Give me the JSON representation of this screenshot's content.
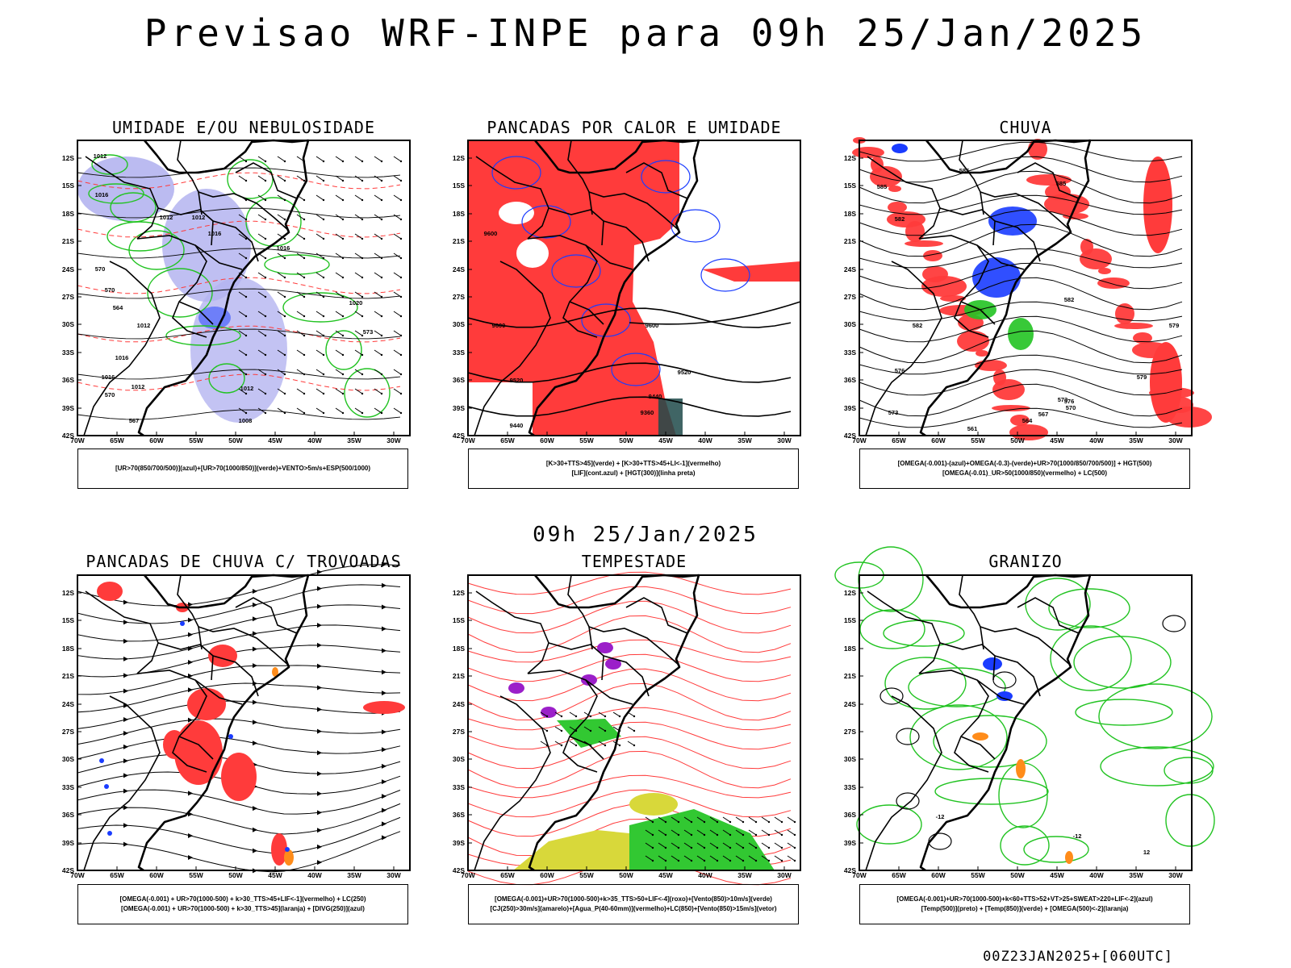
{
  "title": "Previsao WRF-INPE  para 09h 25/Jan/2025",
  "mid_time": "09h 25/Jan/2025",
  "footer": "00Z23JAN2025+[060UTC]",
  "lat_labels": [
    "12S",
    "15S",
    "18S",
    "21S",
    "24S",
    "27S",
    "30S",
    "33S",
    "36S",
    "39S",
    "42S"
  ],
  "lon_labels": [
    "70W",
    "65W",
    "60W",
    "55W",
    "50W",
    "45W",
    "40W",
    "35W",
    "30W"
  ],
  "colors": {
    "red": "#ff3b3b",
    "green": "#22c322",
    "blue": "#1a3cff",
    "lavender": "#b4b4f0",
    "yellow": "#d8d83a",
    "purple": "#9b1fc9",
    "orange": "#ff8c1a",
    "black": "#000000"
  },
  "panels": [
    {
      "title": "UMIDADE E/OU NEBULOSIDADE",
      "legend": [
        "[UR>70(850/700/500)](azul)+[UR>70(1000/850)](verde)+VENTO>5m/s+ESP(500/1000)"
      ],
      "labels": [
        "1012",
        "1016",
        "1012",
        "1012",
        "1016",
        "1016",
        "1012",
        "1020",
        "1012",
        "1016",
        "1016",
        "1012",
        "1008",
        "570",
        "570",
        "564",
        "573",
        "570",
        "567"
      ]
    },
    {
      "title": "PANCADAS POR CALOR E UMIDADE",
      "legend": [
        "[K>30+TTS>45](verde) + [K>30+TTS>45+LI<-1](vermelho)",
        "[LIF](cont.azul) + [HGT(300)](linha preta)"
      ],
      "labels": [
        "9600",
        "9600",
        "9600",
        "9520",
        "9520",
        "9440",
        "9440",
        "9360"
      ]
    },
    {
      "title": "CHUVA",
      "legend": [
        "[OMEGA(-0.001)-(azul)+OMEGA(-0.3)-(verde)+UR>70(1000/850/700/500)] + HGT(500)",
        "[OMEGA(-0.01)_UR>50(1000/850)(vermelho) + LC(500)"
      ],
      "labels": [
        "585",
        "585",
        "585",
        "582",
        "582",
        "582",
        "579",
        "579",
        "576",
        "576",
        "573",
        "573",
        "570",
        "567",
        "564",
        "561"
      ]
    },
    {
      "title": "PANCADAS DE CHUVA C/ TROVOADAS",
      "legend": [
        "[OMEGA(-0.001) + UR>70(1000-500) + k>30_TTS>45+LIF<-1](vermelho) + LC(250)",
        "[OMEGA(-0.001) + UR>70(1000-500) + k>30_TTS>45](laranja) + [DIVG(250)](azul)"
      ],
      "labels": []
    },
    {
      "title": "TEMPESTADE",
      "legend": [
        "[OMEGA(-0.001)+UR>70(1000-500)+k>35_TTS>50+LIF<-4](roxo)+[Vento(850)>10m/s](verde)",
        "[CJ(250)>30m/s](amarelo)+[Agua_P(40-60mm)](vermelho)+LC(850)+[Vento(850)>15m/s](vetor)"
      ],
      "labels": []
    },
    {
      "title": "GRANIZO",
      "legend": [
        "[OMEGA(-0.001)+UR>70(1000-500)+k<60+TTS>52+VT>25+SWEAT>220+LIF<-2](azul)",
        "[Temp(500)](preto) + [Temp(850)](verde) + [OMEGA(500)<-2](laranja)"
      ],
      "labels": [
        "-12",
        "-12",
        "12"
      ]
    }
  ]
}
